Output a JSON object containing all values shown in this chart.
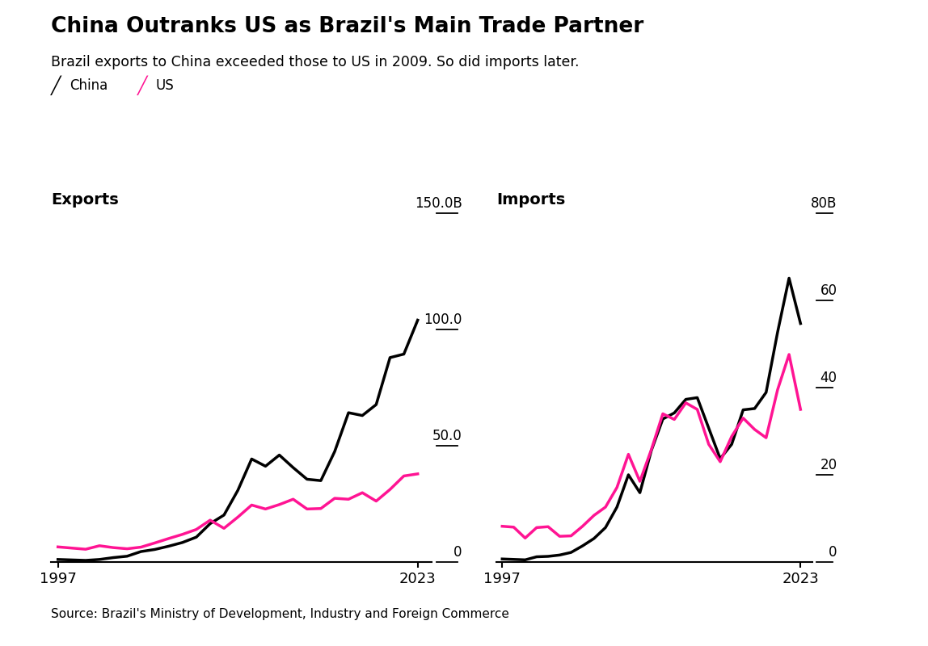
{
  "title": "China Outranks US as Brazil's Main Trade Partner",
  "subtitle": "Brazil exports to China exceeded those to US in 2009. So did imports later.",
  "source": "Source: Brazil's Ministry of Development, Industry and Foreign Commerce",
  "china_color": "#000000",
  "us_color": "#FF1493",
  "years": [
    1997,
    1998,
    1999,
    2000,
    2001,
    2002,
    2003,
    2004,
    2005,
    2006,
    2007,
    2008,
    2009,
    2010,
    2011,
    2012,
    2013,
    2014,
    2015,
    2016,
    2017,
    2018,
    2019,
    2020,
    2021,
    2022,
    2023
  ],
  "exports_china": [
    1.1,
    0.9,
    0.7,
    1.1,
    1.9,
    2.5,
    4.5,
    5.4,
    6.8,
    8.4,
    10.7,
    16.5,
    20.2,
    30.8,
    44.3,
    41.2,
    46.0,
    40.6,
    35.6,
    35.0,
    47.5,
    64.2,
    63.0,
    67.7,
    87.9,
    89.4,
    104.0
  ],
  "exports_us": [
    6.5,
    6.0,
    5.5,
    7.0,
    6.2,
    5.7,
    6.4,
    8.2,
    10.1,
    11.9,
    14.0,
    18.0,
    14.5,
    19.3,
    24.5,
    22.8,
    24.7,
    27.0,
    22.8,
    23.0,
    27.4,
    27.0,
    29.8,
    26.2,
    31.2,
    37.0,
    37.9
  ],
  "imports_china": [
    0.7,
    0.6,
    0.5,
    1.2,
    1.3,
    1.6,
    2.2,
    3.7,
    5.4,
    7.9,
    12.6,
    20.0,
    15.9,
    25.6,
    32.8,
    34.2,
    37.3,
    37.7,
    30.7,
    23.7,
    27.0,
    34.9,
    35.2,
    38.9,
    52.7,
    65.1,
    54.7
  ],
  "imports_us": [
    8.2,
    8.0,
    5.5,
    7.9,
    8.1,
    5.9,
    6.0,
    8.2,
    10.7,
    12.6,
    17.1,
    24.7,
    18.5,
    25.8,
    34.0,
    32.7,
    36.5,
    35.0,
    27.0,
    23.0,
    28.8,
    33.0,
    30.4,
    28.5,
    39.5,
    47.6,
    35.0
  ],
  "exports_ylim": [
    0,
    150
  ],
  "exports_yticks": [
    0,
    50.0,
    100.0,
    150.0
  ],
  "exports_ytick_labels": [
    "0",
    "50.0",
    "100.0",
    "150.0B"
  ],
  "imports_ylim": [
    0,
    80
  ],
  "imports_yticks": [
    0,
    20,
    40,
    60,
    80
  ],
  "imports_ytick_labels": [
    "0",
    "20",
    "40",
    "60",
    "80B"
  ],
  "background_color": "#FFFFFF"
}
